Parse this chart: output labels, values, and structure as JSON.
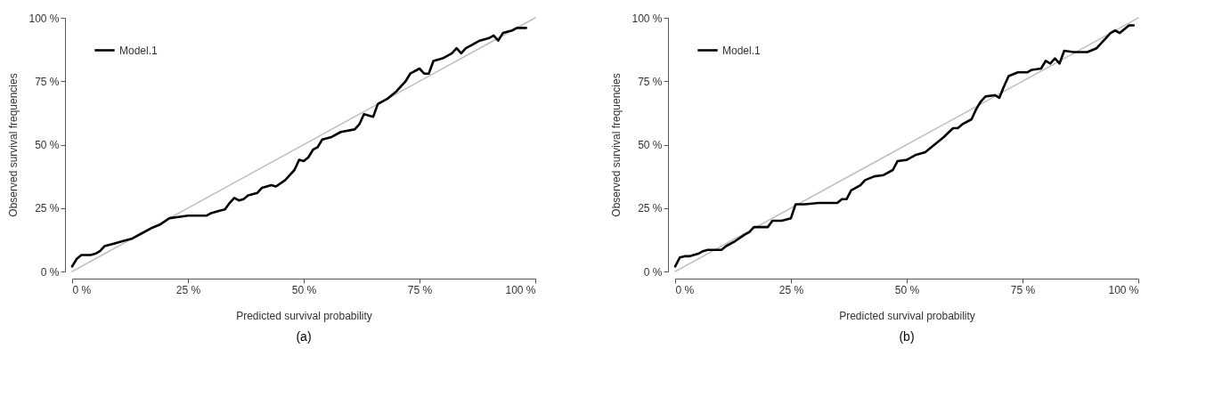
{
  "chart_data": [
    {
      "type": "line",
      "xlabel": "Predicted survival probability",
      "ylabel": "Observed survival frequencies",
      "legend": "top left",
      "grid": false,
      "xlim": [
        0,
        100
      ],
      "ylim": [
        0,
        100
      ],
      "xticks": [
        {
          "value": 0,
          "label": "0 %"
        },
        {
          "value": 25,
          "label": "25 %"
        },
        {
          "value": 50,
          "label": "50 %"
        },
        {
          "value": 75,
          "label": "75 %"
        },
        {
          "value": 100,
          "label": "100 %"
        }
      ],
      "yticks": [
        {
          "value": 0,
          "label": "0 %"
        },
        {
          "value": 25,
          "label": "25 %"
        },
        {
          "value": 50,
          "label": "50 %"
        },
        {
          "value": 75,
          "label": "75 %"
        },
        {
          "value": 100,
          "label": "100 %"
        }
      ],
      "annotations": [
        "(a)"
      ],
      "series": [
        {
          "color": "#c0c0c0",
          "x": [
            0,
            100
          ],
          "values": [
            0,
            100
          ]
        },
        {
          "name": "Model.1",
          "color": "#000000",
          "x": [
            0,
            1,
            2,
            4,
            5,
            6,
            7,
            9,
            11,
            13,
            15,
            17,
            19,
            21,
            23,
            25,
            29,
            30,
            32,
            33,
            34,
            35,
            36,
            37,
            38,
            40,
            41,
            43,
            44,
            46,
            47,
            48,
            49,
            50,
            51,
            52,
            53,
            54,
            56,
            58,
            61,
            62,
            63,
            65,
            66,
            68,
            70,
            72,
            73,
            75,
            76,
            77,
            78,
            80,
            82,
            83,
            84,
            85,
            86,
            88,
            90,
            91,
            92,
            93,
            95,
            96,
            98
          ],
          "values": [
            2,
            5,
            6.5,
            6.5,
            7,
            8,
            10,
            11,
            12,
            13,
            15,
            17,
            18.5,
            21,
            21.5,
            22,
            22,
            23,
            24,
            24.5,
            27,
            29,
            28,
            28.5,
            30,
            31,
            33,
            34,
            33.5,
            36,
            38,
            40,
            44,
            43.5,
            45,
            48,
            49,
            52,
            53,
            55,
            56,
            58,
            62,
            61,
            66,
            68,
            71,
            75,
            78,
            80,
            78,
            78,
            83,
            84,
            86,
            88,
            86,
            88,
            89,
            91,
            92,
            93,
            91,
            94,
            95,
            96,
            96
          ]
        }
      ]
    },
    {
      "type": "line",
      "xlabel": "Predicted survival probability",
      "ylabel": "Observed survival frequencies",
      "legend": "top left",
      "grid": false,
      "xlim": [
        0,
        100
      ],
      "ylim": [
        0,
        100
      ],
      "xticks": [
        {
          "value": 0,
          "label": "0 %"
        },
        {
          "value": 25,
          "label": "25 %"
        },
        {
          "value": 50,
          "label": "50 %"
        },
        {
          "value": 75,
          "label": "75 %"
        },
        {
          "value": 100,
          "label": "100 %"
        }
      ],
      "yticks": [
        {
          "value": 0,
          "label": "0 %"
        },
        {
          "value": 25,
          "label": "25 %"
        },
        {
          "value": 50,
          "label": "50 %"
        },
        {
          "value": 75,
          "label": "75 %"
        },
        {
          "value": 100,
          "label": "100 %"
        }
      ],
      "annotations": [
        "(b)"
      ],
      "series": [
        {
          "color": "#c0c0c0",
          "x": [
            0,
            100
          ],
          "values": [
            0,
            100
          ]
        },
        {
          "name": "Model.1",
          "color": "#000000",
          "x": [
            0,
            1,
            2,
            3,
            4,
            5,
            6,
            7,
            9,
            10,
            11,
            13,
            15,
            16,
            17,
            19,
            20,
            21,
            23,
            25,
            26,
            28,
            31,
            35,
            36,
            37,
            38,
            40,
            41,
            43,
            45,
            47,
            48,
            50,
            52,
            54,
            56,
            58,
            60,
            61,
            62,
            64,
            65,
            66,
            67,
            69,
            70,
            71,
            72,
            74,
            76,
            77,
            79,
            80,
            81,
            82,
            83,
            84,
            86,
            89,
            91,
            93,
            94,
            95,
            96,
            98,
            99
          ],
          "values": [
            2,
            5.5,
            6,
            6,
            6.5,
            7,
            8,
            8.5,
            8.5,
            8.5,
            10,
            12,
            14.5,
            15.5,
            17.5,
            17.5,
            17.5,
            20,
            20,
            21,
            26.5,
            26.5,
            27,
            27,
            28.5,
            28.5,
            32,
            34,
            36,
            37.5,
            38,
            40,
            43.5,
            44,
            46,
            47,
            50,
            53,
            56.5,
            56.5,
            58,
            60,
            64,
            67,
            69,
            69.5,
            68.5,
            73,
            77,
            78.5,
            78.5,
            79.5,
            80,
            83,
            82,
            84,
            82,
            87,
            86.5,
            86.5,
            88,
            92,
            94,
            95,
            94,
            97,
            97
          ]
        }
      ]
    }
  ]
}
